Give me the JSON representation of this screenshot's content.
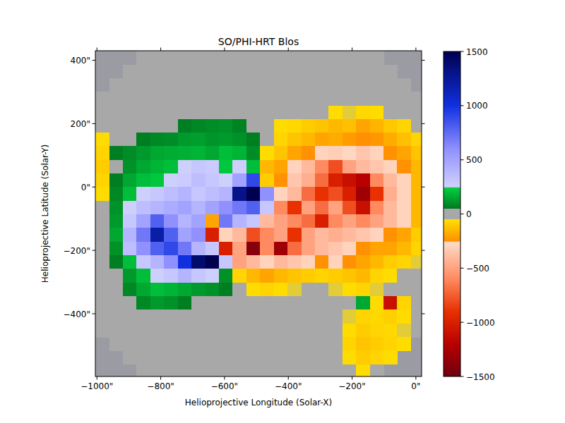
{
  "chart_data": {
    "type": "heatmap",
    "title": "SO/PHI-HRT Blos",
    "x_label": "Helioprojective Longitude (Solar-X)",
    "y_label": "Helioprojective Latitude (Solar-Y)",
    "x": [
      -983,
      -940,
      -897,
      -854,
      -811,
      -768,
      -725,
      -682,
      -639,
      -596,
      -553,
      -510,
      -467,
      -424,
      -381,
      -338,
      -295,
      -252,
      -209,
      -166,
      -123,
      -80,
      -37,
      6
    ],
    "y": [
      408,
      365,
      322,
      279,
      236,
      193,
      150,
      107,
      64,
      21,
      -22,
      -65,
      -108,
      -151,
      -194,
      -237,
      -280,
      -323,
      -366,
      -409,
      -452,
      -495,
      -538,
      -581
    ],
    "values": [
      [
        null,
        null,
        null,
        8,
        -6,
        10,
        5,
        -8,
        6,
        12,
        -5,
        8,
        -10,
        6,
        -8,
        10,
        -12,
        8,
        -15,
        -20,
        -10,
        null,
        null,
        null
      ],
      [
        null,
        null,
        12,
        -8,
        6,
        15,
        -10,
        8,
        20,
        10,
        -6,
        12,
        8,
        -10,
        -15,
        8,
        -12,
        -20,
        6,
        -10,
        8,
        -12,
        null,
        null
      ],
      [
        null,
        10,
        -10,
        15,
        8,
        -6,
        12,
        25,
        18,
        10,
        -8,
        6,
        -15,
        -10,
        6,
        -12,
        -8,
        10,
        -20,
        -15,
        -10,
        6,
        -8,
        null
      ],
      [
        -20,
        12,
        8,
        -6,
        15,
        10,
        -10,
        20,
        30,
        15,
        10,
        -8,
        -12,
        20,
        -10,
        -15,
        -25,
        -30,
        -20,
        -25,
        -15,
        -10,
        -6,
        8
      ],
      [
        -30,
        10,
        15,
        -8,
        12,
        20,
        30,
        25,
        40,
        45,
        35,
        20,
        -10,
        -15,
        -20,
        -30,
        -40,
        -60,
        -50,
        -70,
        -60,
        -40,
        -30,
        -15
      ],
      [
        -40,
        15,
        20,
        30,
        40,
        35,
        60,
        80,
        90,
        100,
        70,
        40,
        -30,
        -60,
        -70,
        -100,
        -120,
        -150,
        -130,
        -200,
        -160,
        -110,
        -80,
        -40
      ],
      [
        -60,
        30,
        40,
        60,
        80,
        90,
        120,
        130,
        110,
        120,
        100,
        60,
        -40,
        -80,
        -120,
        -150,
        -200,
        -180,
        -220,
        -250,
        -230,
        -180,
        -130,
        -80
      ],
      [
        -80,
        60,
        90,
        120,
        150,
        160,
        170,
        180,
        150,
        200,
        180,
        90,
        -60,
        -120,
        -200,
        -250,
        -300,
        -320,
        -280,
        -350,
        -300,
        -250,
        -200,
        -120
      ],
      [
        -100,
        40,
        100,
        150,
        180,
        200,
        250,
        300,
        280,
        220,
        260,
        200,
        -150,
        -200,
        -300,
        -400,
        -600,
        -800,
        -500,
        -400,
        -350,
        -300,
        -250,
        -150
      ],
      [
        -80,
        60,
        150,
        200,
        220,
        250,
        280,
        350,
        300,
        250,
        500,
        900,
        -100,
        -250,
        -350,
        -450,
        -700,
        -1000,
        -1100,
        -1200,
        -600,
        -400,
        -300,
        -150
      ],
      [
        -60,
        80,
        200,
        250,
        300,
        350,
        400,
        300,
        350,
        400,
        1300,
        1600,
        600,
        -300,
        -400,
        -700,
        -900,
        -800,
        -1000,
        -1300,
        -900,
        -450,
        -300,
        -150
      ],
      [
        -40,
        100,
        250,
        350,
        400,
        450,
        500,
        400,
        500,
        600,
        700,
        800,
        300,
        -600,
        -900,
        -500,
        -700,
        -500,
        -800,
        -1100,
        -600,
        -400,
        -300,
        -150
      ],
      [
        -30,
        120,
        300,
        500,
        800,
        600,
        400,
        500,
        -200,
        700,
        400,
        300,
        -400,
        -500,
        -600,
        -700,
        -1000,
        -600,
        -500,
        -600,
        -500,
        -400,
        -300,
        -150
      ],
      [
        -20,
        150,
        400,
        700,
        1200,
        800,
        500,
        600,
        -1000,
        -300,
        -400,
        -800,
        -600,
        -500,
        -900,
        -500,
        -400,
        -450,
        -400,
        -350,
        -300,
        -250,
        -200,
        -100
      ],
      [
        -10,
        100,
        350,
        600,
        800,
        900,
        700,
        400,
        300,
        -1000,
        -500,
        -1400,
        -600,
        -1300,
        -700,
        -500,
        -400,
        -350,
        -300,
        -250,
        -200,
        -200,
        -150,
        -80
      ],
      [
        -10,
        60,
        200,
        300,
        400,
        600,
        1000,
        1400,
        1600,
        300,
        -500,
        -400,
        -300,
        -400,
        -350,
        -300,
        -250,
        -300,
        -250,
        -200,
        -150,
        -100,
        -80,
        -50
      ],
      [
        -5,
        40,
        120,
        200,
        250,
        300,
        400,
        300,
        250,
        100,
        -80,
        -150,
        -200,
        -150,
        -120,
        -100,
        -80,
        -100,
        -120,
        -150,
        -80,
        -60,
        -40,
        -20
      ],
      [
        5,
        30,
        80,
        150,
        200,
        180,
        150,
        120,
        100,
        60,
        -30,
        -60,
        -80,
        -60,
        -50,
        -40,
        -30,
        -50,
        -60,
        -80,
        -50,
        -30,
        -20,
        -10
      ],
      [
        8,
        20,
        40,
        80,
        120,
        100,
        60,
        40,
        30,
        15,
        -10,
        -20,
        -30,
        -20,
        -15,
        -10,
        -8,
        -20,
        -30,
        150,
        -60,
        -1100,
        -80,
        -40
      ],
      [
        -6,
        10,
        20,
        30,
        40,
        30,
        20,
        15,
        10,
        8,
        -6,
        -10,
        -12,
        -8,
        6,
        -10,
        -15,
        -20,
        -50,
        -80,
        -70,
        -90,
        -60,
        -30
      ],
      [
        8,
        -5,
        12,
        10,
        -8,
        6,
        12,
        -10,
        8,
        -6,
        10,
        -8,
        6,
        -12,
        10,
        -15,
        -10,
        -20,
        -60,
        -100,
        -80,
        -70,
        -50,
        -20
      ],
      [
        null,
        6,
        -8,
        10,
        -6,
        8,
        -10,
        6,
        12,
        -8,
        6,
        -10,
        8,
        -6,
        -12,
        -10,
        -8,
        -15,
        -80,
        -120,
        -100,
        -80,
        -60,
        null
      ],
      [
        null,
        null,
        10,
        -6,
        8,
        -10,
        6,
        -8,
        10,
        6,
        -12,
        8,
        -6,
        10,
        -8,
        -10,
        -12,
        -15,
        -60,
        -100,
        -80,
        -60,
        null,
        null
      ],
      [
        null,
        null,
        null,
        8,
        -6,
        10,
        -8,
        6,
        -10,
        8,
        -6,
        12,
        -8,
        6,
        -10,
        -8,
        -12,
        -20,
        -40,
        -60,
        -40,
        null,
        null,
        null
      ]
    ],
    "xlim": [
      -1005,
      18
    ],
    "ylim": [
      -598,
      430
    ],
    "xticks": [
      {
        "value": -1000,
        "label": "−1000\""
      },
      {
        "value": -800,
        "label": "−800\""
      },
      {
        "value": -600,
        "label": "−600\""
      },
      {
        "value": -400,
        "label": "−400\""
      },
      {
        "value": -200,
        "label": "−200\""
      },
      {
        "value": 0,
        "label": "0\""
      }
    ],
    "yticks": [
      {
        "value": 400,
        "label": "400\""
      },
      {
        "value": 200,
        "label": "200\""
      },
      {
        "value": 0,
        "label": "0\""
      },
      {
        "value": -200,
        "label": "−200\""
      },
      {
        "value": -400,
        "label": "−400\""
      }
    ],
    "colorbar": {
      "range": [
        -1500,
        1500
      ],
      "ticks": [
        1500,
        1000,
        500,
        0,
        {
          "value": -500,
          "label": "−500"
        },
        {
          "value": -1000,
          "label": "−1000"
        },
        {
          "value": -1500,
          "label": "−1500"
        }
      ]
    },
    "grid": false
  }
}
